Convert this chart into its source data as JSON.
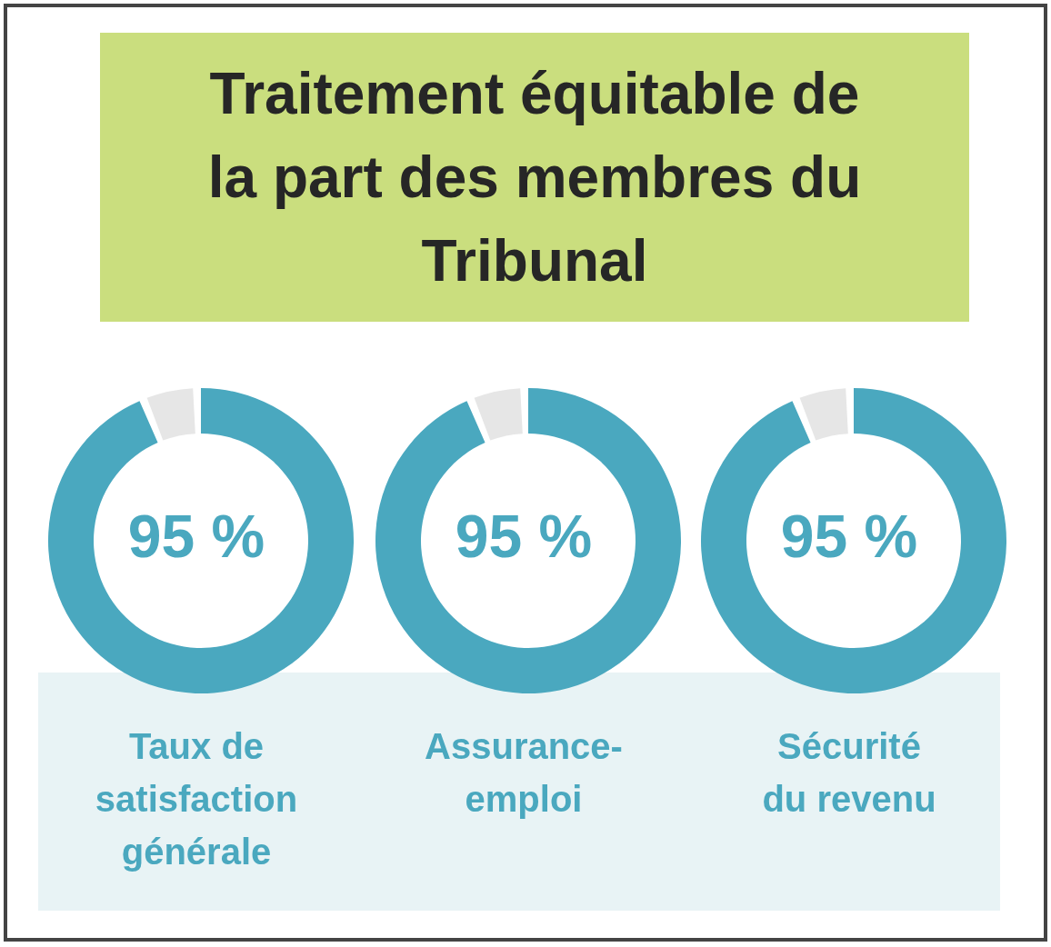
{
  "chart_data": [
    {
      "type": "donut",
      "title": "Traitement équitable de la part des membres du Tribunal",
      "xlabel": "Taux de satisfaction générale",
      "categories": [
        null,
        null
      ],
      "values": [
        95,
        5
      ],
      "colors": [
        "#4aa8bf",
        "#e6e6e6"
      ],
      "value_labels": [
        "95 %",
        null
      ]
    },
    {
      "type": "donut",
      "xlabel": "Assurance-emploi",
      "categories": [
        null,
        null
      ],
      "values": [
        95,
        5
      ],
      "colors": [
        "#4aa8bf",
        "#e6e6e6"
      ],
      "value_labels": [
        "95 %",
        null
      ]
    },
    {
      "type": "donut",
      "xlabel": "Sécurité du revenu",
      "categories": [
        null,
        null
      ],
      "values": [
        95,
        5
      ],
      "colors": [
        "#4aa8bf",
        "#e6e6e6"
      ],
      "value_labels": [
        "95 %",
        null
      ]
    }
  ]
}
